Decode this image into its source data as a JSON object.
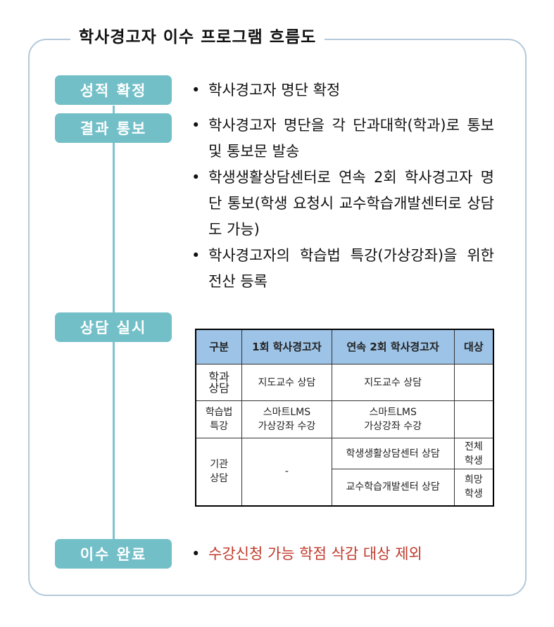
{
  "title": "학사경고자 이수 프로그램 흐름도",
  "stages": [
    "성적 확정",
    "결과 통보",
    "상담 실시",
    "이수 완료"
  ],
  "bullets": {
    "s1": [
      "학사경고자 명단 확정"
    ],
    "s2": [
      "학사경고자 명단을 각 단과대학(학과)로 통보 및 통보문 발송",
      "학생생활상담센터로 연속 2회 학사경고자 명단 통보(학생 요청시 교수학습개발센터로 상담도 가능)",
      "학사경고자의 학습법 특강(가상강좌)을 위한 전산 등록"
    ],
    "s4": [
      "수강신청 가능 학점 삭감 대상 제외"
    ]
  },
  "table": {
    "headers": [
      "구분",
      "1회 학사경고자",
      "연속 2회 학사경고자",
      "대상"
    ],
    "rows": [
      {
        "label": "학과\n상담",
        "first": "지도교수 상담",
        "second": "지도교수 상담",
        "target": ""
      },
      {
        "label": "학습법\n특강",
        "first": "스마트LMS\n가상강좌 수강",
        "second": "스마트LMS\n가상강좌 수강",
        "target": ""
      },
      {
        "label": "기관\n상담",
        "first": "-",
        "second": "학생생활상담센터 상담",
        "target": "전체\n학생",
        "second2": "교수학습개발센터 상담",
        "target2": "희망\n학생"
      }
    ]
  },
  "colors": {
    "stage": "#72bfc8",
    "header": "#9dc3e6",
    "frame": "#b3c9da",
    "highlight": "#c0392b"
  }
}
